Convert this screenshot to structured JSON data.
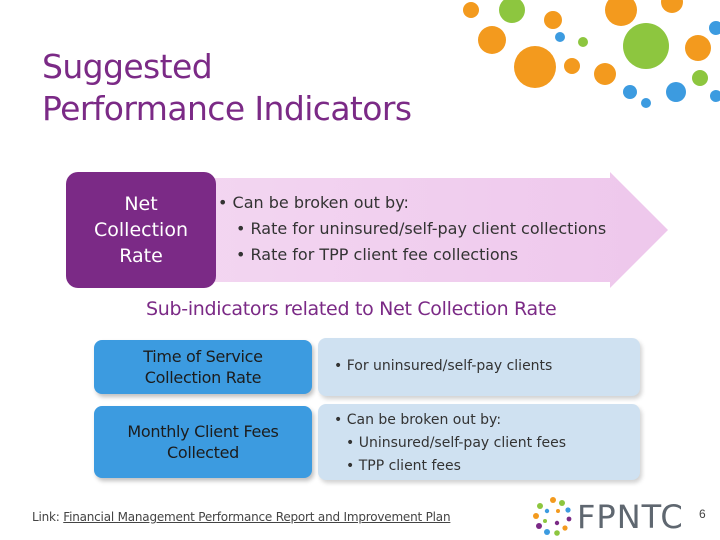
{
  "title": {
    "line1": "Suggested",
    "line2": "Performance Indicators"
  },
  "net_collection": {
    "box_label": "Net Collection Rate",
    "bullets": [
      "• Can be broken out by:",
      "• Rate for uninsured/self-pay client collections",
      "• Rate for TPP client fee collections"
    ]
  },
  "subheading": "Sub-indicators related to Net Collection Rate",
  "sub_indicators": [
    {
      "label": "Time of Service Collection Rate",
      "details": [
        "• For uninsured/self-pay clients"
      ]
    },
    {
      "label": "Monthly Client Fees Collected",
      "details": [
        "• Can be broken out by:",
        "• Uninsured/self-pay client fees",
        "• TPP client fees"
      ]
    }
  ],
  "footer": {
    "link_prefix": "Link: ",
    "link_text": "Financial Management Performance Report and Improvement Plan",
    "logo_text": "FPNTC",
    "page_number": "6"
  },
  "colors": {
    "purple": "#7b2a86",
    "arrow_fill": "#f0cdef",
    "blue": "#3c9be0",
    "light_blue": "#cfe1f1",
    "orange": "#f39a1e",
    "green": "#8dc63f"
  }
}
